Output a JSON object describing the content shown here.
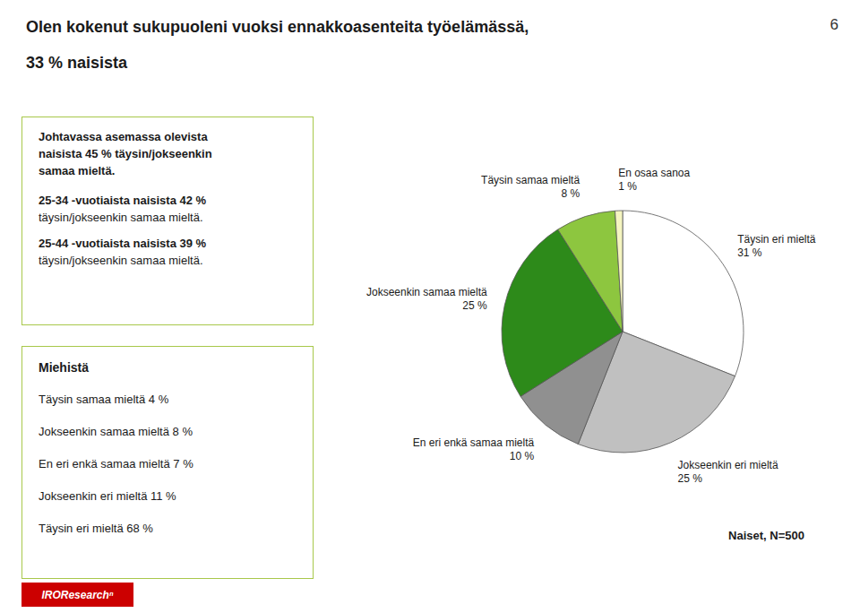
{
  "chart_data": {
    "type": "pie",
    "title": "Olen kokenut sukupuoleni vuoksi ennakkoasenteita työelämässä,",
    "subtitle": "33 % naisista",
    "categories": [
      "Täysin eri mieltä",
      "Jokseenkin eri mieltä",
      "En eri enkä samaa mieltä",
      "Jokseenkin samaa mieltä",
      "Täysin samaa mieltä",
      "En osaa sanoa"
    ],
    "values": [
      31,
      25,
      10,
      25,
      8,
      1
    ],
    "value_labels": [
      "31 %",
      "25 %",
      "10 %",
      "25 %",
      "8 %",
      "1 %"
    ],
    "colors": [
      "#ffffff",
      "#c0c0c0",
      "#909090",
      "#2d8a1a",
      "#8dc63f",
      "#f5f5c0"
    ],
    "data_labels": true,
    "annotations": [
      [
        "6"
      ],
      [
        "Naiset, N=500"
      ],
      [
        "IROResearchⁿ"
      ],
      [
        "Johtavassa asemassa olevista",
        "naisista 45 % täysin/jokseenkin",
        "samaa mieltä.",
        "25-34 -vuotiaista naisista 42 %",
        "täysin/jokseenkin samaa mieltä.",
        "25-44 -vuotiaista naisista 39 %",
        "täysin/jokseenkin samaa mieltä."
      ],
      [
        "Miehistä",
        "Täysin samaa mieltä 4 %",
        "Jokseenkin samaa mieltä 8 %",
        "En eri enkä samaa mieltä 7 %",
        "Jokseenkin eri mieltä 11 %",
        "Täysin eri mieltä 68 %"
      ]
    ]
  }
}
